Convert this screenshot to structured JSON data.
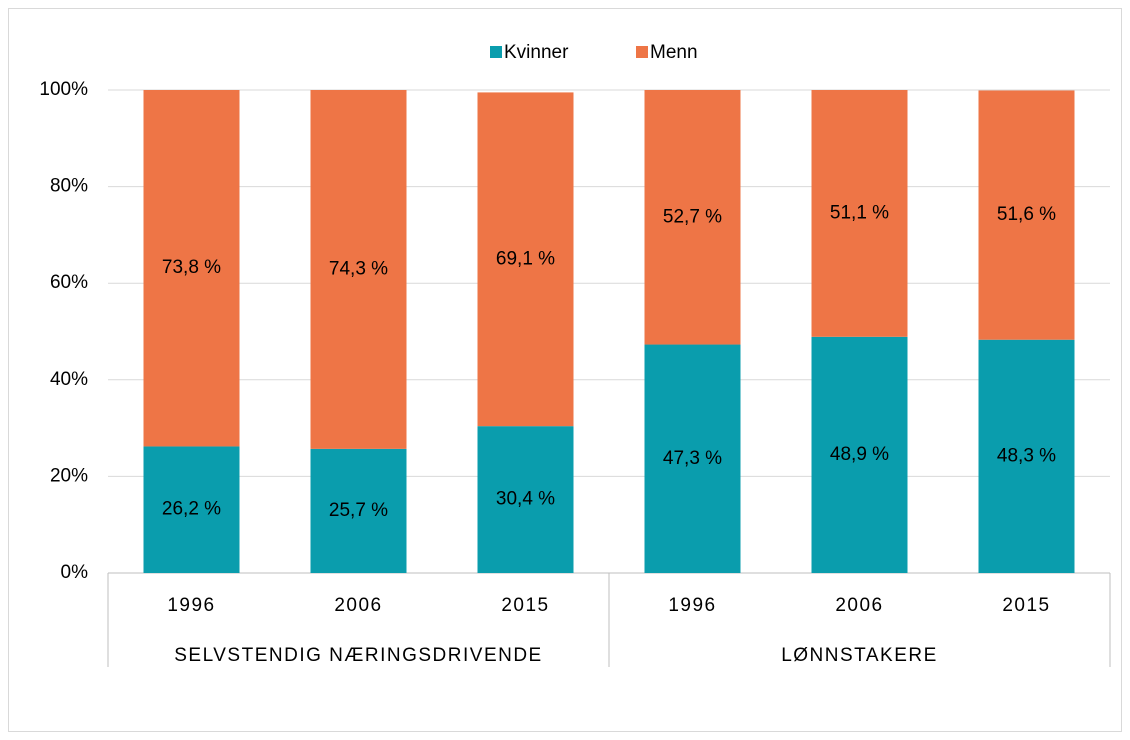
{
  "chart_data": {
    "type": "stacked_bar",
    "groups": [
      {
        "name": "SELVSTENDIG NÆRINGSDRIVENDE",
        "categories": [
          "1996",
          "2006",
          "2015"
        ]
      },
      {
        "name": "LØNNSTAKERE",
        "categories": [
          "1996",
          "2006",
          "2015"
        ]
      }
    ],
    "series": [
      {
        "name": "Kvinner",
        "color": "#0a9dad",
        "values": [
          26.2,
          25.7,
          30.4,
          47.3,
          48.9,
          48.3
        ],
        "value_labels": [
          "26,2 %",
          "25,7 %",
          "30,4 %",
          "47,3 %",
          "48,9 %",
          "48,3 %"
        ]
      },
      {
        "name": "Menn",
        "color": "#ee7546",
        "values": [
          73.8,
          74.3,
          69.1,
          52.7,
          51.1,
          51.6
        ],
        "value_labels": [
          "73,8 %",
          "74,3 %",
          "69,1 %",
          "52,7 %",
          "51,1 %",
          "51,6 %"
        ]
      }
    ],
    "ylim": [
      0,
      100
    ],
    "yticks": [
      {
        "value": 0,
        "label": "0%"
      },
      {
        "value": 20,
        "label": "20%"
      },
      {
        "value": 40,
        "label": "40%"
      },
      {
        "value": 60,
        "label": "60%"
      },
      {
        "value": 80,
        "label": "80%"
      },
      {
        "value": 100,
        "label": "100%"
      }
    ],
    "grid": true,
    "legend": "top"
  }
}
